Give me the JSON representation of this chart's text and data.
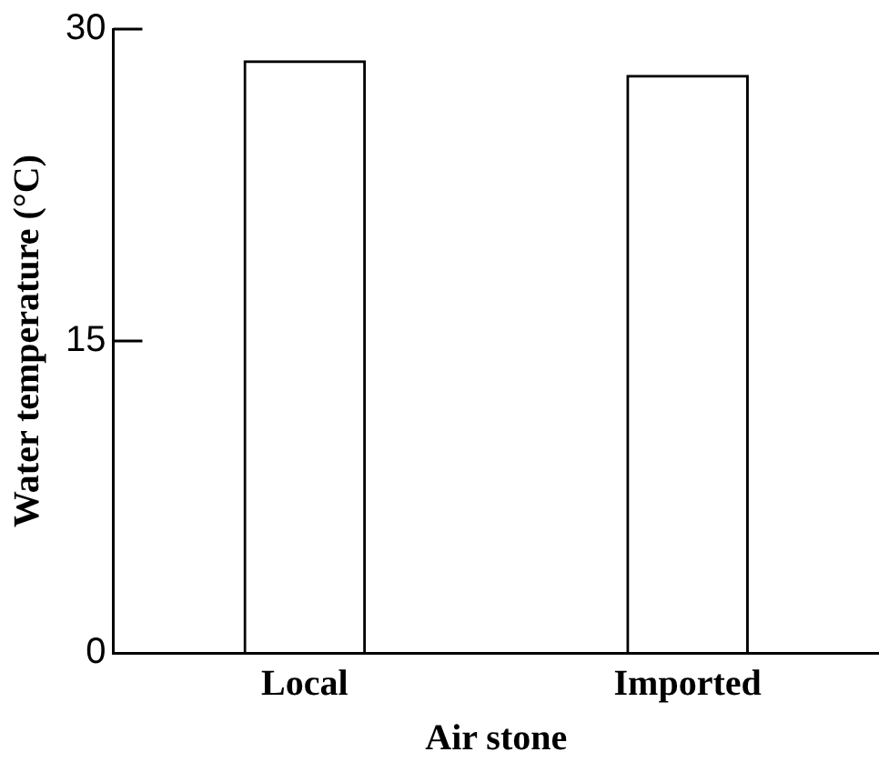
{
  "chart_data": {
    "type": "bar",
    "xlabel": "Air stone",
    "ylabel": "Water temperature (°C)",
    "categories": [
      "Local",
      "Imported"
    ],
    "values": [
      28.5,
      27.8
    ],
    "color": "#000000",
    "ylim": [
      0,
      30
    ],
    "yticks": [
      0,
      15,
      30
    ],
    "grid": false,
    "legend": false
  }
}
